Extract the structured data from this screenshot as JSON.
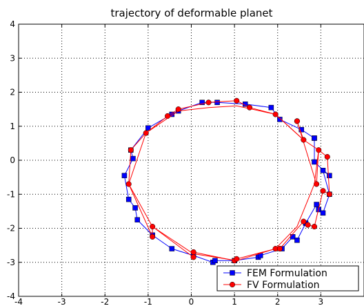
{
  "chart_data": {
    "type": "line",
    "title": "trajectory of deformable planet",
    "xlabel": "",
    "ylabel": "",
    "xlim": [
      -4,
      4
    ],
    "ylim": [
      -4,
      4
    ],
    "xticks": [
      "-4",
      "-3",
      "-2",
      "-1",
      "0",
      "1",
      "2",
      "3"
    ],
    "yticks": [
      "-4",
      "-3",
      "-2",
      "-1",
      "0",
      "1",
      "2",
      "3",
      "4"
    ],
    "grid": true,
    "legend_position": "bottom-right",
    "series": [
      {
        "name": "FEM Formulation",
        "color": "#0000ff",
        "marker": "square",
        "x": [
          2.85,
          2.55,
          2.05,
          1.85,
          1.25,
          0.6,
          0.25,
          -0.3,
          -0.45,
          -1.0,
          -1.4,
          -1.35,
          -1.55,
          -1.45,
          -1.3,
          -1.25,
          -0.9,
          -0.45,
          0.05,
          0.5,
          0.55,
          1.0,
          1.55,
          1.6,
          2.1,
          2.35,
          2.45,
          2.65,
          2.9,
          2.95,
          3.05,
          3.2,
          3.05,
          3.2,
          2.85,
          2.85
        ],
        "y": [
          0.65,
          0.9,
          1.2,
          1.55,
          1.65,
          1.7,
          1.7,
          1.45,
          1.35,
          0.95,
          0.3,
          0.05,
          -0.45,
          -1.15,
          -1.4,
          -1.75,
          -2.2,
          -2.6,
          -2.8,
          -3.0,
          -2.95,
          -2.95,
          -2.85,
          -2.8,
          -2.6,
          -2.25,
          -2.35,
          -1.85,
          -1.3,
          -1.45,
          -1.55,
          -1.0,
          -0.3,
          -0.45,
          -0.05,
          0.65
        ]
      },
      {
        "name": "FV Formulation",
        "color": "#ff0000",
        "marker": "circle",
        "x": [
          2.45,
          2.6,
          1.95,
          1.35,
          1.05,
          0.4,
          -0.3,
          -0.55,
          -1.05,
          -1.4,
          -1.45,
          -0.9,
          -0.9,
          0.05,
          0.05,
          1.0,
          1.05,
          1.95,
          2.05,
          2.6,
          2.7,
          2.85,
          3.05,
          3.2,
          3.15,
          2.95,
          2.9,
          2.45
        ],
        "y": [
          1.15,
          0.6,
          1.35,
          1.55,
          1.75,
          1.7,
          1.5,
          1.3,
          0.8,
          0.3,
          -0.7,
          -2.25,
          -1.95,
          -2.85,
          -2.7,
          -2.95,
          -2.9,
          -2.6,
          -2.6,
          -1.8,
          -1.9,
          -1.95,
          -0.9,
          -1.0,
          0.1,
          0.3,
          -0.7,
          1.15
        ]
      },
      {
        "name": "",
        "color": "#ff0000",
        "marker": "none",
        "x": [
          -1.45,
          -1.05,
          -0.3,
          0.4,
          1.05,
          1.95,
          2.6,
          2.95,
          2.85,
          2.45,
          1.95,
          1.05,
          0.05,
          -0.9,
          -1.45
        ],
        "y": [
          -0.7,
          0.8,
          1.45,
          1.55,
          1.6,
          1.35,
          0.6,
          0.3,
          -0.7,
          -1.95,
          -2.6,
          -2.95,
          -2.75,
          -1.95,
          -0.7
        ]
      }
    ]
  }
}
